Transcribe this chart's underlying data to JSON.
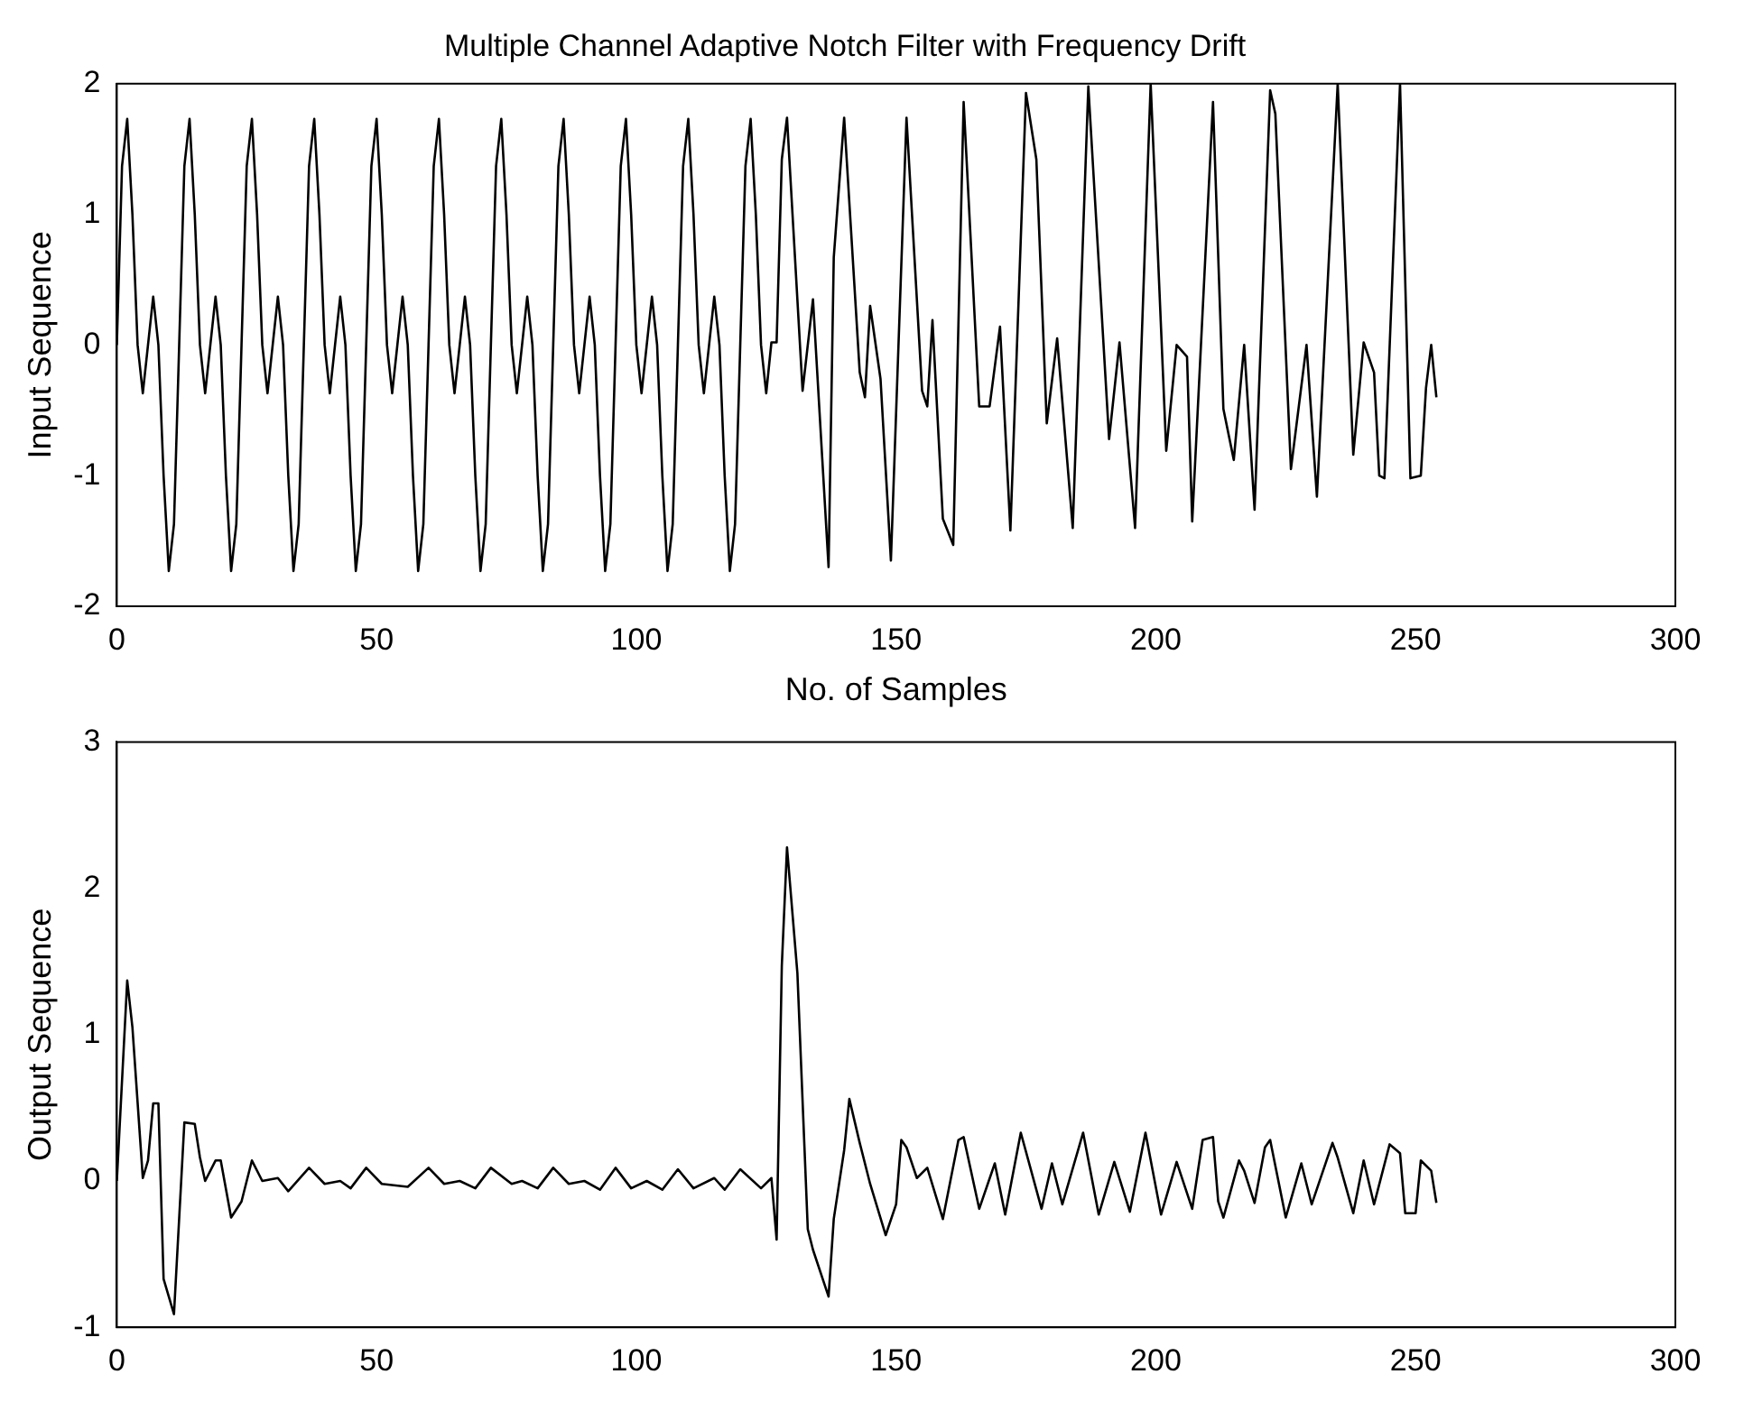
{
  "chart_data": [
    {
      "type": "line",
      "title": "Multiple Channel Adaptive Notch Filter with Frequency Drift",
      "xlabel": "No. of Samples",
      "ylabel": "Input Sequence",
      "xlim": [
        0,
        300
      ],
      "xticks": [
        0,
        50,
        100,
        150,
        200,
        250,
        300
      ],
      "ylim": [
        -2,
        2
      ],
      "yticks": [
        -2,
        -1,
        0,
        1,
        2
      ],
      "marker": "none",
      "series": [
        {
          "color": "#000000",
          "x": [
            0,
            1,
            2,
            3,
            4,
            5,
            6,
            7,
            8,
            9,
            10,
            11,
            12,
            13,
            14,
            15,
            16,
            17,
            18,
            19,
            20,
            21,
            22,
            23,
            24,
            25,
            26,
            27,
            28,
            29,
            30,
            31,
            32,
            33,
            34,
            35,
            36,
            37,
            38,
            39,
            40,
            41,
            42,
            43,
            44,
            45,
            46,
            47,
            48,
            49,
            50,
            51,
            52,
            53,
            54,
            55,
            56,
            57,
            58,
            59,
            60,
            61,
            62,
            63,
            64,
            65,
            66,
            67,
            68,
            69,
            70,
            71,
            72,
            73,
            74,
            75,
            76,
            77,
            78,
            79,
            80,
            81,
            82,
            83,
            84,
            85,
            86,
            87,
            88,
            89,
            90,
            91,
            92,
            93,
            94,
            95,
            96,
            97,
            98,
            99,
            100,
            101,
            102,
            103,
            104,
            105,
            106,
            107,
            108,
            109,
            110,
            111,
            112,
            113,
            114,
            115,
            116,
            117,
            118,
            119,
            120,
            121,
            122,
            123,
            124,
            125,
            126,
            127,
            128,
            129,
            132,
            134,
            137,
            138,
            140,
            143,
            144,
            145,
            147,
            149,
            152,
            155,
            156,
            157,
            159,
            161,
            163,
            166,
            168,
            170,
            172,
            175,
            177,
            179,
            181,
            184,
            187,
            191,
            193,
            196,
            199,
            202,
            204,
            206,
            207,
            211,
            213,
            215,
            217,
            219,
            222,
            223,
            226,
            229,
            231,
            235,
            238,
            240,
            242,
            243,
            244,
            247,
            249,
            251,
            252,
            253,
            254
          ],
          "values": [
            0,
            1.37,
            1.73,
            1,
            0,
            -0.37,
            0,
            0.37,
            0,
            -1,
            -1.73,
            -1.37,
            0,
            1.37,
            1.73,
            1,
            0,
            -0.37,
            0,
            0.37,
            0,
            -1,
            -1.73,
            -1.37,
            0,
            1.37,
            1.73,
            1,
            0,
            -0.37,
            0,
            0.37,
            0,
            -1,
            -1.73,
            -1.37,
            0,
            1.37,
            1.73,
            1,
            0,
            -0.37,
            0,
            0.37,
            0,
            -1,
            -1.73,
            -1.37,
            0,
            1.37,
            1.73,
            1,
            0,
            -0.37,
            0,
            0.37,
            0,
            -1,
            -1.73,
            -1.37,
            0,
            1.37,
            1.73,
            1,
            0,
            -0.37,
            0,
            0.37,
            0,
            -1,
            -1.73,
            -1.37,
            0,
            1.37,
            1.73,
            1,
            0,
            -0.37,
            0,
            0.37,
            0,
            -1,
            -1.73,
            -1.37,
            0,
            1.37,
            1.73,
            1,
            0,
            -0.37,
            0,
            0.37,
            0,
            -1,
            -1.73,
            -1.37,
            0,
            1.37,
            1.73,
            1,
            0,
            -0.37,
            0,
            0.37,
            0,
            -1,
            -1.73,
            -1.37,
            0,
            1.37,
            1.73,
            1,
            0,
            -0.37,
            0,
            0.37,
            0,
            -1,
            -1.73,
            -1.37,
            0,
            1.37,
            1.73,
            1,
            0,
            -0.37,
            0.02,
            0.02,
            1.42,
            1.74,
            -0.35,
            0.35,
            -1.7,
            0.67,
            1.74,
            -0.21,
            -0.4,
            0.3,
            -0.26,
            -1.65,
            1.74,
            -0.35,
            -0.47,
            0.19,
            -1.33,
            -1.53,
            1.86,
            -0.47,
            -0.47,
            0.14,
            -1.42,
            1.93,
            1.42,
            -0.6,
            0.05,
            -1.4,
            1.98,
            -0.72,
            0.02,
            -1.4,
            2,
            -0.81,
            0,
            -0.09,
            -1.35,
            1.86,
            -0.49,
            -0.88,
            0,
            -1.26,
            1.95,
            1.77,
            -0.95,
            0,
            -1.16,
            2,
            -0.84,
            0.02,
            -0.21,
            -1,
            -1.02,
            2,
            -1.02,
            -1,
            -0.33,
            0,
            -0.4
          ]
        }
      ]
    },
    {
      "type": "line",
      "ylabel": "Output Sequence",
      "xlim": [
        0,
        300
      ],
      "xticks": [
        0,
        50,
        100,
        150,
        200,
        250,
        300
      ],
      "ylim": [
        -1,
        3
      ],
      "yticks": [
        -1,
        0,
        1,
        2,
        3
      ],
      "marker": "none",
      "series": [
        {
          "color": "#000000",
          "x": [
            0,
            2,
            3,
            5,
            6,
            7,
            8,
            9,
            11,
            13,
            15,
            16,
            17,
            19,
            20,
            22,
            24,
            26,
            28,
            31,
            33,
            37,
            40,
            43,
            45,
            48,
            51,
            56,
            60,
            63,
            66,
            69,
            72,
            76,
            78,
            81,
            84,
            87,
            90,
            93,
            96,
            99,
            102,
            105,
            108,
            111,
            115,
            117,
            120,
            124,
            126,
            127,
            128,
            129,
            131,
            133,
            134,
            137,
            138,
            140,
            141,
            143,
            145,
            148,
            150,
            151,
            152,
            154,
            156,
            159,
            162,
            163,
            166,
            169,
            171,
            174,
            178,
            180,
            182,
            186,
            189,
            192,
            195,
            198,
            201,
            204,
            207,
            209,
            211,
            212,
            213,
            216,
            217,
            219,
            221,
            222,
            225,
            228,
            230,
            234,
            235,
            238,
            240,
            242,
            245,
            247,
            248,
            250,
            251,
            253,
            254
          ],
          "values": [
            0,
            1.37,
            1.05,
            0.02,
            0.14,
            0.53,
            0.53,
            -0.67,
            -0.91,
            0.4,
            0.39,
            0.16,
            0,
            0.14,
            0.14,
            -0.25,
            -0.14,
            0.14,
            0,
            0.02,
            -0.07,
            0.09,
            -0.02,
            0,
            -0.05,
            0.09,
            -0.02,
            -0.04,
            0.09,
            -0.02,
            0,
            -0.05,
            0.09,
            -0.02,
            0,
            -0.05,
            0.09,
            -0.02,
            0,
            -0.06,
            0.09,
            -0.05,
            0,
            -0.06,
            0.08,
            -0.05,
            0.02,
            -0.06,
            0.08,
            -0.05,
            0.02,
            -0.4,
            1.47,
            2.28,
            1.42,
            -0.33,
            -0.47,
            -0.79,
            -0.26,
            0.21,
            0.56,
            0.26,
            -0.02,
            -0.37,
            -0.16,
            0.28,
            0.23,
            0.02,
            0.09,
            -0.26,
            0.28,
            0.3,
            -0.19,
            0.12,
            -0.23,
            0.33,
            -0.19,
            0.12,
            -0.16,
            0.33,
            -0.23,
            0.13,
            -0.21,
            0.33,
            -0.23,
            0.13,
            -0.19,
            0.28,
            0.3,
            -0.14,
            -0.25,
            0.14,
            0.07,
            -0.15,
            0.23,
            0.28,
            -0.25,
            0.12,
            -0.16,
            0.26,
            0.16,
            -0.22,
            0.14,
            -0.16,
            0.25,
            0.19,
            -0.22,
            -0.22,
            0.14,
            0.07,
            -0.15
          ]
        }
      ]
    }
  ]
}
